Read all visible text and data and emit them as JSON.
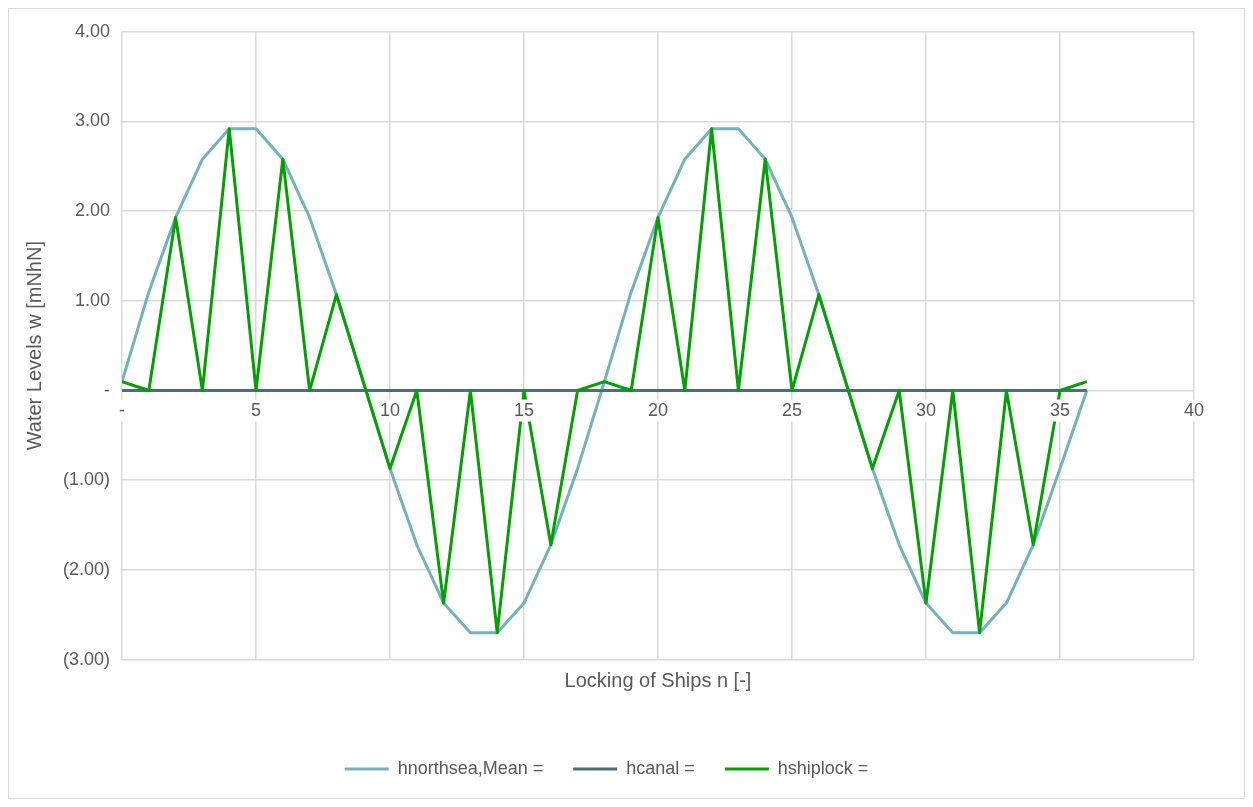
{
  "chart_data": {
    "type": "line",
    "xlabel": "Locking of Ships n [-]",
    "ylabel": "Water Levels w [mNhN]",
    "x": [
      0,
      1,
      2,
      3,
      4,
      5,
      6,
      7,
      8,
      9,
      10,
      11,
      12,
      13,
      14,
      15,
      16,
      17,
      18,
      19,
      20,
      21,
      22,
      23,
      24,
      25,
      26,
      27,
      28,
      29,
      30,
      31,
      32,
      33,
      34,
      35,
      36
    ],
    "series": [
      {
        "name": "hnorthsea,Mean =",
        "color": "#72b2bd",
        "values": [
          0.1,
          1.1,
          1.93,
          2.58,
          2.92,
          2.92,
          2.58,
          1.93,
          1.07,
          0.1,
          -0.87,
          -1.72,
          -2.37,
          -2.7,
          -2.7,
          -2.37,
          -1.72,
          -0.87,
          0.1,
          1.1,
          1.93,
          2.58,
          2.92,
          2.92,
          2.58,
          1.93,
          1.07,
          0.1,
          -0.87,
          -1.72,
          -2.37,
          -2.7,
          -2.7,
          -2.37,
          -1.72,
          -0.87,
          0
        ]
      },
      {
        "name": "hcanal =",
        "color": "#4e6d7b",
        "values": [
          0,
          0,
          0,
          0,
          0,
          0,
          0,
          0,
          0,
          0,
          0,
          0,
          0,
          0,
          0,
          0,
          0,
          0,
          0,
          0,
          0,
          0,
          0,
          0,
          0,
          0,
          0,
          0,
          0,
          0,
          0,
          0,
          0,
          0,
          0,
          0,
          0
        ]
      },
      {
        "name": "hshiplock =",
        "color": "#00a000",
        "values": [
          0.1,
          0,
          1.93,
          0,
          2.92,
          0,
          2.58,
          0,
          1.07,
          0.1,
          -0.87,
          0,
          -2.37,
          0,
          -2.7,
          0,
          -1.72,
          0,
          0.1,
          0,
          1.93,
          0,
          2.92,
          0,
          2.58,
          0,
          1.07,
          0.1,
          -0.87,
          0,
          -2.37,
          0,
          -2.7,
          0,
          -1.72,
          0,
          0.1
        ]
      }
    ],
    "xlim": [
      0,
      40
    ],
    "xticks": [
      {
        "value": 0,
        "label": "-"
      },
      5,
      10,
      15,
      20,
      25,
      30,
      35,
      40
    ],
    "ylim": [
      -3,
      4
    ],
    "yticks": [
      {
        "value": -3,
        "label": "(3.00)"
      },
      {
        "value": -2,
        "label": "(2.00)"
      },
      {
        "value": -1,
        "label": "(1.00)"
      },
      {
        "value": 0,
        "label": "-"
      },
      {
        "value": 1,
        "label": "1.00"
      },
      {
        "value": 2,
        "label": "2.00"
      },
      {
        "value": 3,
        "label": "3.00"
      },
      {
        "value": 4,
        "label": "4.00"
      }
    ],
    "grid": true,
    "legend": "bottom",
    "marker": "none",
    "line_style": "solid"
  }
}
